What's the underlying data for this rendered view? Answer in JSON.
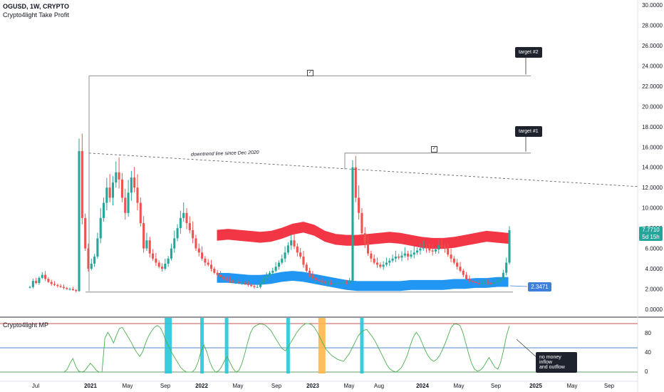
{
  "header": {
    "symbol": "OGUSD, 1W, CRYPTO",
    "indicator": "Crypto4light Take Profit"
  },
  "sub_indicator": "Crypto4light MP",
  "annotations": {
    "downtrend": "downtrend line since Dec 2020",
    "target1": "target #1",
    "target2": "target #2",
    "no_money": [
      "no money inflow",
      "and outflow"
    ]
  },
  "price_tag": {
    "price": "7.7710",
    "countdown": "5d 15h",
    "color": "#26a69a"
  },
  "blue_tag": {
    "value": "2.3471",
    "color": "#3d7fd9"
  },
  "colors": {
    "up": "#26a69a",
    "down": "#ef5350",
    "red_band": "#f23645",
    "blue_band": "#2196f3",
    "osc": "#4caf50"
  },
  "chart_data": {
    "type": "candlestick",
    "x_ticks": [
      "Jul",
      "2021",
      "May",
      "Sep",
      "2022",
      "May",
      "Sep",
      "2023",
      "May",
      "Aug",
      "2024",
      "May",
      "Sep",
      "2025",
      "May",
      "Sep"
    ],
    "y_ticks": [
      "30.0000",
      "28.0000",
      "26.0000",
      "24.0000",
      "22.0000",
      "20.0000",
      "18.0000",
      "16.0000",
      "14.0000",
      "12.0000",
      "10.0000",
      "8.0000",
      "6.0000",
      "4.0000",
      "2.0000",
      "0.0000"
    ],
    "ylim": [
      0,
      30
    ],
    "osc_ticks": [
      "80",
      "40",
      "0"
    ],
    "osc_levels": [
      100,
      50,
      0
    ],
    "trend_line": {
      "from": 15.4,
      "to": 12.1
    },
    "target_levels": {
      "target1": 15.4,
      "target2": 23.0
    },
    "close": [
      2.2,
      2.8,
      2.6,
      3.1,
      3.4,
      3.0,
      2.7,
      2.5,
      2.4,
      2.3,
      2.2,
      2.1,
      2.0,
      2.0,
      1.9,
      1.8,
      15.6,
      9.0,
      6.0,
      4.0,
      4.5,
      5.2,
      7.0,
      9.0,
      10.5,
      12.0,
      11.0,
      12.5,
      13.5,
      12.8,
      11.0,
      9.5,
      11.5,
      13.0,
      12.0,
      10.5,
      8.5,
      6.0,
      6.8,
      5.5,
      5.0,
      4.6,
      4.2,
      4.0,
      4.5,
      5.0,
      6.0,
      7.0,
      8.0,
      9.0,
      9.5,
      8.5,
      7.8,
      7.0,
      6.0,
      5.6,
      5.0,
      4.6,
      4.4,
      4.0,
      3.6,
      3.4,
      3.2,
      3.0,
      2.9,
      2.8,
      2.7,
      2.7,
      2.6,
      2.6,
      2.5,
      2.4,
      2.3,
      2.2,
      2.2,
      2.6,
      3.0,
      3.3,
      3.6,
      3.8,
      4.2,
      4.6,
      5.0,
      5.6,
      6.3,
      6.8,
      6.2,
      5.6,
      5.2,
      4.4,
      3.8,
      3.4,
      3.1,
      2.9,
      2.8,
      2.7,
      2.6,
      2.6,
      2.5,
      2.5,
      2.6,
      2.6,
      2.7,
      2.6,
      2.8,
      14.0,
      11.0,
      9.5,
      7.5,
      6.5,
      5.5,
      5.0,
      4.6,
      4.4,
      4.2,
      4.4,
      4.6,
      4.8,
      5.0,
      5.2,
      5.1,
      5.3,
      5.5,
      5.2,
      5.4,
      5.6,
      5.8,
      6.0,
      6.1,
      6.0,
      5.8,
      5.7,
      5.9,
      6.3,
      6.2,
      6.0,
      5.4,
      5.0,
      4.6,
      4.2,
      3.8,
      3.4,
      3.0,
      2.8,
      2.7,
      2.6,
      2.5,
      2.6,
      2.7,
      2.6,
      2.5,
      2.7,
      2.8,
      3.0,
      3.6,
      4.6,
      7.8
    ],
    "red_band": [
      7.3,
      7.4,
      7.3,
      7.2,
      7.1,
      7.2,
      7.5,
      7.9,
      8.1,
      7.8,
      7.2,
      6.9,
      6.8,
      6.8,
      6.9,
      7.0,
      7.1,
      7.0,
      6.8,
      6.6,
      6.5,
      6.5,
      6.6,
      6.8,
      7.0,
      7.2,
      7.1,
      7.0
    ],
    "blue_band": [
      3.1,
      3.1,
      3.0,
      2.9,
      2.9,
      3.0,
      3.2,
      3.3,
      3.2,
      3.0,
      2.8,
      2.6,
      2.4,
      2.3,
      2.3,
      2.3,
      2.3,
      2.3,
      2.4,
      2.4,
      2.4,
      2.4,
      2.5,
      2.5,
      2.6,
      2.6,
      2.7,
      2.7
    ],
    "oscillator": [
      0,
      5,
      18,
      28,
      12,
      2,
      0,
      2,
      10,
      18,
      12,
      4,
      0,
      0,
      70,
      82,
      72,
      60,
      76,
      90,
      92,
      82,
      72,
      62,
      50,
      40,
      32,
      42,
      60,
      74,
      84,
      92,
      96,
      92,
      80,
      64,
      52,
      40,
      30,
      20,
      10,
      4,
      0,
      0,
      0,
      6,
      20,
      42,
      56,
      42,
      22,
      8,
      0,
      2,
      10,
      22,
      32,
      20,
      8,
      0,
      3,
      16,
      36,
      60,
      80,
      92,
      96,
      99,
      99,
      97,
      92,
      86,
      76,
      66,
      56,
      48,
      44,
      52,
      62,
      72,
      82,
      90,
      96,
      100,
      100,
      98,
      92,
      82,
      70,
      58,
      47,
      40,
      34,
      30,
      26,
      24,
      22,
      30,
      38,
      50,
      62,
      74,
      82,
      86,
      88,
      80,
      72,
      62,
      50,
      38,
      26,
      14,
      6,
      2,
      0,
      4,
      10,
      22,
      36,
      56,
      72,
      82,
      74,
      60,
      46,
      34,
      26,
      22,
      26,
      34,
      46,
      60,
      76,
      92,
      99,
      99,
      96,
      82,
      60,
      38,
      18,
      6,
      2,
      4,
      10,
      20,
      30,
      20,
      10,
      6,
      20,
      45,
      75,
      95
    ],
    "signals": [
      {
        "index": 45,
        "color": "#26c6da",
        "width": 2
      },
      {
        "index": 56,
        "color": "#26c6da",
        "width": 1
      },
      {
        "index": 64,
        "color": "#26c6da",
        "width": 1
      },
      {
        "index": 84,
        "color": "#26c6da",
        "width": 1
      },
      {
        "index": 95,
        "color": "#ffb74d",
        "width": 2
      },
      {
        "index": 108,
        "color": "#26c6da",
        "width": 1
      }
    ]
  }
}
